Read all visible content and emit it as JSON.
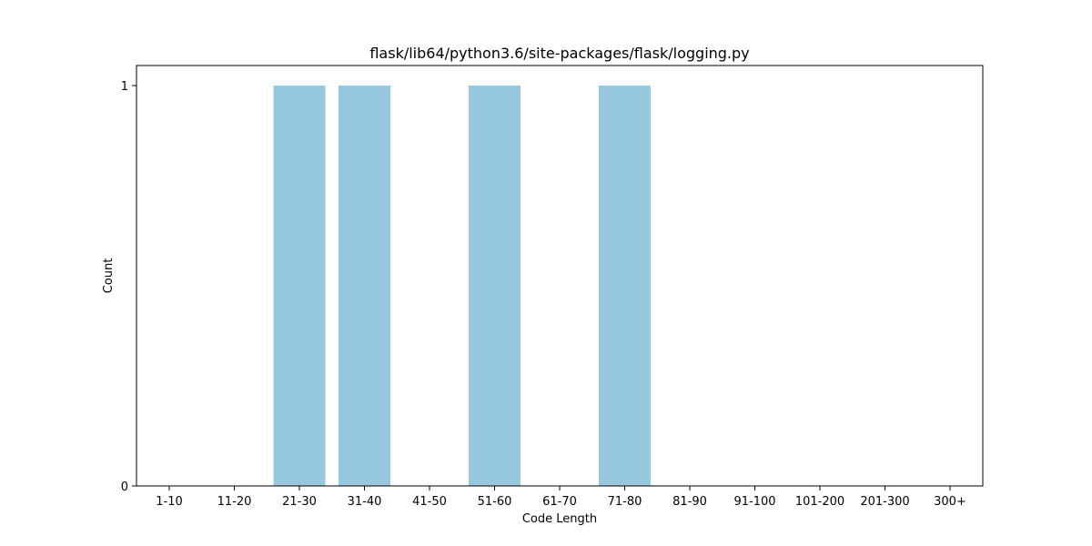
{
  "chart_data": {
    "type": "bar",
    "title": "flask/lib64/python3.6/site-packages/flask/logging.py",
    "xlabel": "Code Length",
    "ylabel": "Count",
    "categories": [
      "1-10",
      "11-20",
      "21-30",
      "31-40",
      "41-50",
      "51-60",
      "61-70",
      "71-80",
      "81-90",
      "91-100",
      "101-200",
      "201-300",
      "300+"
    ],
    "values": [
      0,
      0,
      1,
      1,
      0,
      1,
      0,
      1,
      0,
      0,
      0,
      0,
      0
    ],
    "ylim": [
      0,
      1
    ],
    "yticks": [
      0,
      1
    ],
    "grid": false,
    "legend": "none",
    "bar_color": "#96c9de"
  }
}
